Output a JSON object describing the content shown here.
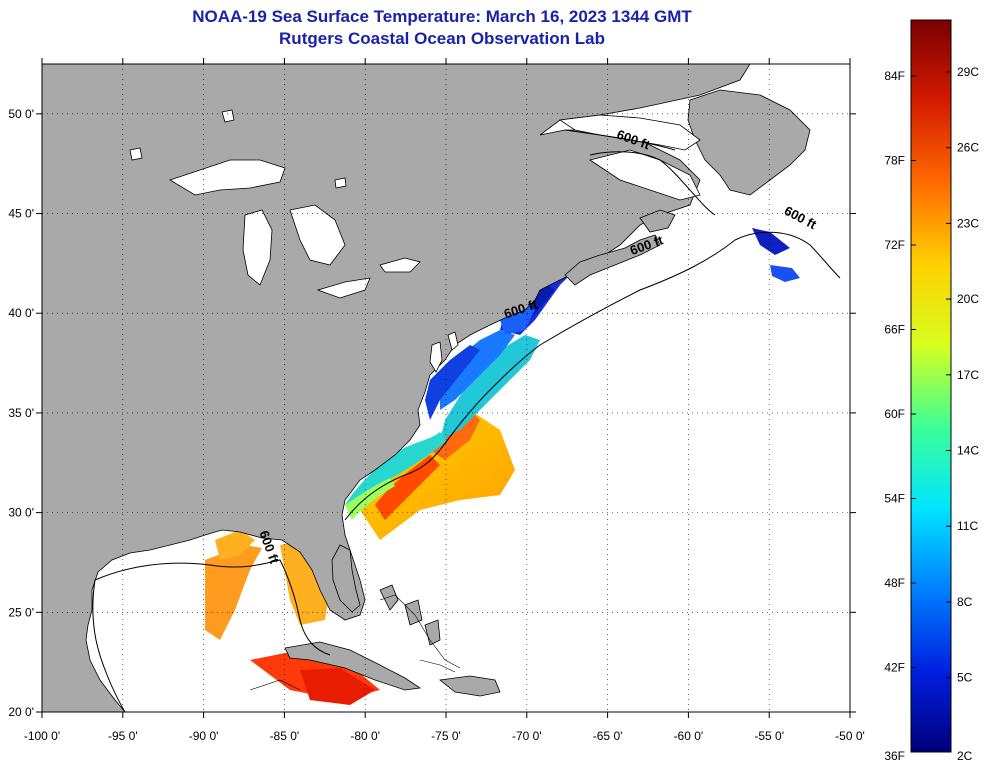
{
  "title": {
    "line1": "NOAA-19 Sea Surface Temperature:  March 16, 2023 1344 GMT",
    "line2": "Rutgers Coastal Ocean Observation Lab"
  },
  "map": {
    "lon_range": [
      -100,
      -50
    ],
    "lat_range": [
      20,
      52.5
    ],
    "lon_ticks": [
      {
        "value": -100,
        "label": "-100 0'"
      },
      {
        "value": -95,
        "label": "-95 0'"
      },
      {
        "value": -90,
        "label": "-90 0'"
      },
      {
        "value": -85,
        "label": "-85 0'"
      },
      {
        "value": -80,
        "label": "-80 0'"
      },
      {
        "value": -75,
        "label": "-75 0'"
      },
      {
        "value": -70,
        "label": "-70 0'"
      },
      {
        "value": -65,
        "label": "-65 0'"
      },
      {
        "value": -60,
        "label": "-60 0'"
      },
      {
        "value": -55,
        "label": "-55 0'"
      },
      {
        "value": -50,
        "label": "-50 0'"
      }
    ],
    "lat_ticks": [
      {
        "value": 50,
        "label": "50 0'"
      },
      {
        "value": 45,
        "label": "45 0'"
      },
      {
        "value": 40,
        "label": "40 0'"
      },
      {
        "value": 35,
        "label": "35 0'"
      },
      {
        "value": 30,
        "label": "30 0'"
      },
      {
        "value": 25,
        "label": "25 0'"
      },
      {
        "value": 20,
        "label": "20 0'"
      }
    ],
    "grid": "dotted",
    "colors": {
      "land": "#a9a9a9",
      "no_data": "#ffffff"
    },
    "contour_labels": [
      {
        "text": "600 ft",
        "lon": -63.5,
        "lat": 48.5
      },
      {
        "text": "600 ft",
        "lon": -62.5,
        "lat": 43.2
      },
      {
        "text": "600 ft",
        "lon": -70.3,
        "lat": 40.0
      },
      {
        "text": "600 ft",
        "lon": -53.2,
        "lat": 44.6
      },
      {
        "text": "600 ft",
        "lon": -86.2,
        "lat": 28.2
      }
    ]
  },
  "colorbar": {
    "fahrenheit_labels": [
      "84F",
      "78F",
      "72F",
      "66F",
      "60F",
      "54F",
      "48F",
      "42F",
      "36F"
    ],
    "celsius_labels": [
      "29C",
      "26C",
      "23C",
      "20C",
      "17C",
      "14C",
      "11C",
      "8C",
      "5C",
      "2C"
    ],
    "colors": [
      "#7a0000",
      "#d41b00",
      "#ff6a00",
      "#ffd000",
      "#d6ff1e",
      "#3dff95",
      "#00e5ff",
      "#0080ff",
      "#0020e0",
      "#00007a"
    ]
  }
}
